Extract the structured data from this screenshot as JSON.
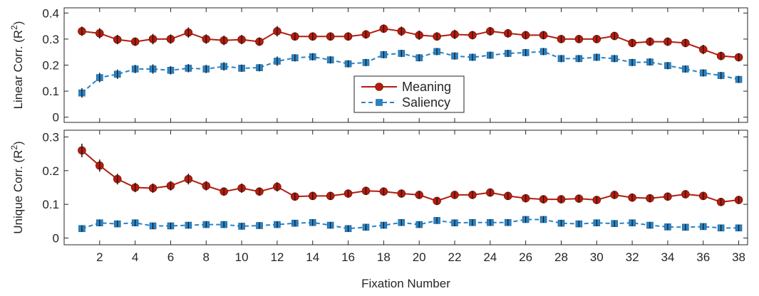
{
  "chart_data": {
    "type": "line",
    "xlabel": "Fixation Number",
    "x": [
      1,
      2,
      3,
      4,
      5,
      6,
      7,
      8,
      9,
      10,
      11,
      12,
      13,
      14,
      15,
      16,
      17,
      18,
      19,
      20,
      21,
      22,
      23,
      24,
      25,
      26,
      27,
      28,
      29,
      30,
      31,
      32,
      33,
      34,
      35,
      36,
      37,
      38
    ],
    "xticks": [
      2,
      4,
      6,
      8,
      10,
      12,
      14,
      16,
      18,
      20,
      22,
      24,
      26,
      28,
      30,
      32,
      34,
      36,
      38
    ],
    "xlim": [
      0,
      38.5
    ],
    "legend": {
      "placement": "center",
      "entries": [
        "Meaning",
        "Saliency"
      ]
    },
    "colors": {
      "meaning": "#b21d0f",
      "saliency": "#2a83c4",
      "errorbar": "#111111",
      "axis": "#262626"
    },
    "panels": [
      {
        "ylabel_prefix": "Linear Corr. (R",
        "ylabel_sup": "2",
        "ylabel_suffix": ")",
        "ylim": [
          -0.02,
          0.42
        ],
        "yticks": [
          0,
          0.1,
          0.2,
          0.3,
          0.4
        ],
        "ytick_labels": [
          "0",
          "0.1",
          "0.2",
          "0.3",
          "0.4"
        ],
        "series": [
          {
            "name": "Meaning",
            "marker": "circle",
            "style": "solid",
            "values": [
              0.33,
              0.322,
              0.298,
              0.29,
              0.3,
              0.3,
              0.325,
              0.3,
              0.295,
              0.298,
              0.29,
              0.33,
              0.31,
              0.31,
              0.31,
              0.31,
              0.318,
              0.34,
              0.33,
              0.315,
              0.31,
              0.318,
              0.315,
              0.33,
              0.322,
              0.315,
              0.315,
              0.3,
              0.3,
              0.3,
              0.312,
              0.285,
              0.29,
              0.29,
              0.285,
              0.26,
              0.235,
              0.23
            ],
            "errors": [
              0.018,
              0.02,
              0.018,
              0.016,
              0.02,
              0.018,
              0.02,
              0.018,
              0.018,
              0.018,
              0.016,
              0.02,
              0.016,
              0.016,
              0.016,
              0.016,
              0.016,
              0.016,
              0.018,
              0.018,
              0.016,
              0.018,
              0.016,
              0.016,
              0.016,
              0.016,
              0.016,
              0.014,
              0.014,
              0.014,
              0.016,
              0.016,
              0.016,
              0.016,
              0.016,
              0.018,
              0.016,
              0.014
            ]
          },
          {
            "name": "Saliency",
            "marker": "square",
            "style": "dashed",
            "values": [
              0.093,
              0.152,
              0.165,
              0.185,
              0.185,
              0.18,
              0.188,
              0.185,
              0.195,
              0.188,
              0.19,
              0.215,
              0.228,
              0.232,
              0.22,
              0.205,
              0.21,
              0.24,
              0.245,
              0.228,
              0.252,
              0.235,
              0.23,
              0.238,
              0.245,
              0.248,
              0.252,
              0.225,
              0.225,
              0.23,
              0.225,
              0.21,
              0.212,
              0.198,
              0.185,
              0.17,
              0.16,
              0.145
            ],
            "errors": [
              0.018,
              0.018,
              0.018,
              0.016,
              0.018,
              0.016,
              0.016,
              0.016,
              0.016,
              0.014,
              0.014,
              0.018,
              0.014,
              0.014,
              0.014,
              0.014,
              0.014,
              0.014,
              0.014,
              0.014,
              0.014,
              0.014,
              0.014,
              0.014,
              0.014,
              0.014,
              0.014,
              0.014,
              0.014,
              0.014,
              0.014,
              0.014,
              0.014,
              0.014,
              0.014,
              0.014,
              0.014,
              0.014
            ]
          }
        ]
      },
      {
        "ylabel_prefix": "Unique Corr. (R",
        "ylabel_sup": "2",
        "ylabel_suffix": ")",
        "ylim": [
          -0.02,
          0.32
        ],
        "yticks": [
          0,
          0.1,
          0.2,
          0.3
        ],
        "ytick_labels": [
          "0",
          "0.1",
          "0.2",
          "0.3"
        ],
        "series": [
          {
            "name": "Meaning",
            "marker": "circle",
            "style": "solid",
            "values": [
              0.26,
              0.215,
              0.175,
              0.15,
              0.148,
              0.155,
              0.175,
              0.155,
              0.138,
              0.148,
              0.138,
              0.152,
              0.123,
              0.125,
              0.125,
              0.132,
              0.14,
              0.138,
              0.132,
              0.128,
              0.11,
              0.128,
              0.128,
              0.135,
              0.125,
              0.118,
              0.115,
              0.115,
              0.117,
              0.113,
              0.128,
              0.12,
              0.118,
              0.123,
              0.13,
              0.125,
              0.107,
              0.113
            ],
            "errors": [
              0.02,
              0.018,
              0.016,
              0.014,
              0.014,
              0.014,
              0.016,
              0.014,
              0.012,
              0.014,
              0.012,
              0.014,
              0.01,
              0.01,
              0.01,
              0.01,
              0.012,
              0.01,
              0.01,
              0.01,
              0.01,
              0.01,
              0.01,
              0.01,
              0.01,
              0.01,
              0.01,
              0.01,
              0.01,
              0.01,
              0.01,
              0.01,
              0.01,
              0.01,
              0.01,
              0.012,
              0.01,
              0.01
            ]
          },
          {
            "name": "Saliency",
            "marker": "square",
            "style": "dashed",
            "values": [
              0.028,
              0.045,
              0.042,
              0.045,
              0.036,
              0.036,
              0.038,
              0.04,
              0.04,
              0.035,
              0.037,
              0.04,
              0.044,
              0.046,
              0.038,
              0.028,
              0.032,
              0.038,
              0.046,
              0.04,
              0.052,
              0.045,
              0.046,
              0.046,
              0.046,
              0.055,
              0.055,
              0.044,
              0.042,
              0.045,
              0.043,
              0.045,
              0.038,
              0.033,
              0.032,
              0.034,
              0.03,
              0.03
            ],
            "errors": [
              0.008,
              0.01,
              0.008,
              0.008,
              0.008,
              0.008,
              0.008,
              0.008,
              0.008,
              0.008,
              0.008,
              0.008,
              0.008,
              0.008,
              0.008,
              0.008,
              0.008,
              0.008,
              0.008,
              0.008,
              0.008,
              0.008,
              0.008,
              0.008,
              0.008,
              0.008,
              0.008,
              0.008,
              0.008,
              0.008,
              0.008,
              0.008,
              0.008,
              0.008,
              0.008,
              0.008,
              0.008,
              0.008
            ]
          }
        ]
      }
    ]
  }
}
